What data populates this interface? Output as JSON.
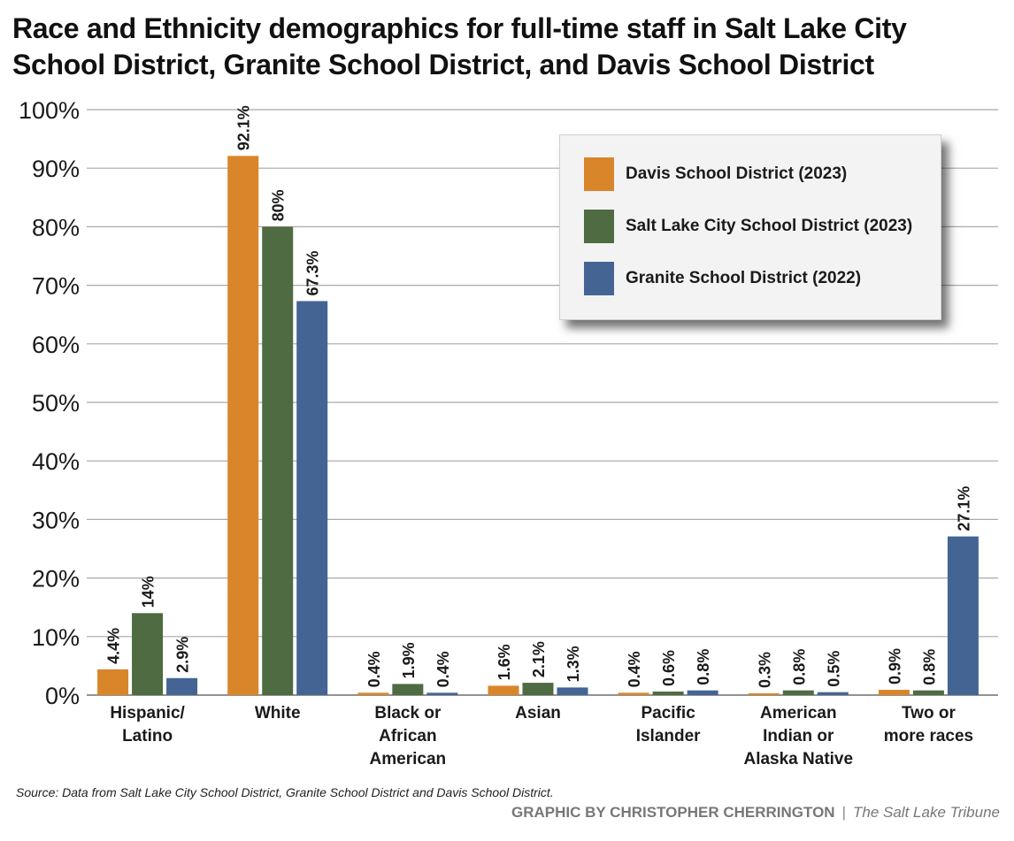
{
  "title_lines": [
    "Race and Ethnicity demographics for full-time staff in Salt Lake City",
    "School District, Granite School District, and Davis School District"
  ],
  "source": "Source: Data from Salt Lake City School District, Granite School District and Davis School District.",
  "credit": {
    "graphic_by": "GRAPHIC BY CHRISTOPHER CHERRINGTON",
    "separator": "|",
    "publication": "The Salt Lake Tribune"
  },
  "chart_data": {
    "type": "bar",
    "title": "Race and Ethnicity demographics for full-time staff in Salt Lake City School District, Granite School District, and Davis School District",
    "xlabel": "",
    "ylabel": "",
    "ylim": [
      0,
      100
    ],
    "yticks": [
      "0%",
      "10%",
      "20%",
      "30%",
      "40%",
      "50%",
      "60%",
      "70%",
      "80%",
      "90%",
      "100%"
    ],
    "grid": true,
    "legend_position": "top-right",
    "categories": [
      [
        "Hispanic/",
        "Latino"
      ],
      [
        "White"
      ],
      [
        "Black or",
        "African",
        "American"
      ],
      [
        "Asian"
      ],
      [
        "Pacific",
        "Islander"
      ],
      [
        "American",
        "Indian or",
        "Alaska Native"
      ],
      [
        "Two or",
        "more races"
      ]
    ],
    "series": [
      {
        "name": "Davis School District (2023)",
        "color": "#d9862b",
        "values": [
          4.4,
          92.1,
          0.4,
          1.6,
          0.4,
          0.3,
          0.9
        ],
        "labels": [
          "4.4%",
          "92.1%",
          "0.4%",
          "1.6%",
          "0.4%",
          "0.3%",
          "0.9%"
        ]
      },
      {
        "name": "Salt Lake City School District (2023)",
        "color": "#4e6b41",
        "values": [
          14,
          80,
          1.9,
          2.1,
          0.6,
          0.8,
          0.8
        ],
        "labels": [
          "14%",
          "80%",
          "1.9%",
          "2.1%",
          "0.6%",
          "0.8%",
          "0.8%"
        ]
      },
      {
        "name": "Granite School District (2022)",
        "color": "#446594",
        "values": [
          2.9,
          67.3,
          0.4,
          1.3,
          0.8,
          0.5,
          27.1
        ],
        "labels": [
          "2.9%",
          "67.3%",
          "0.4%",
          "1.3%",
          "0.8%",
          "0.5%",
          "27.1%"
        ]
      }
    ]
  }
}
